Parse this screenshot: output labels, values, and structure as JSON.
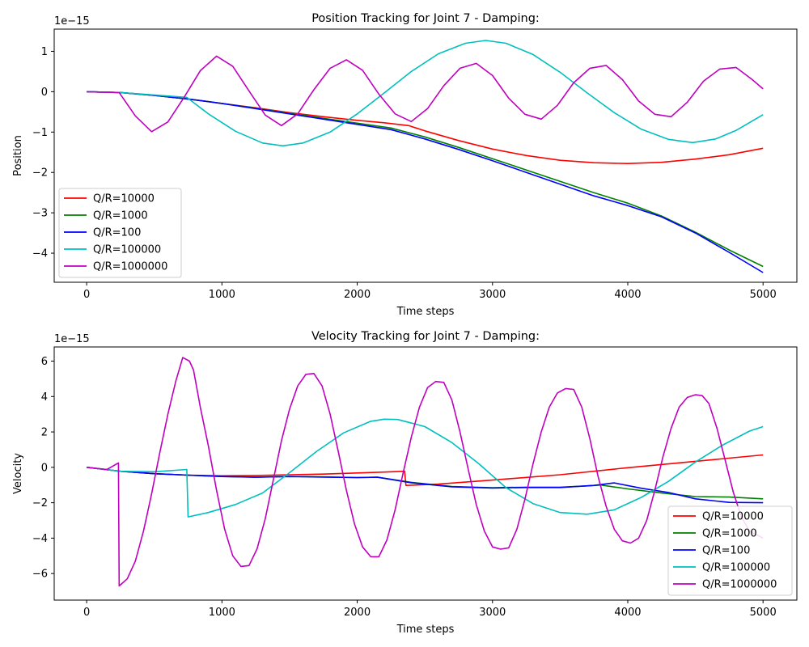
{
  "chart_data": [
    {
      "type": "line",
      "title": "Position Tracking for Joint 7 - Damping:",
      "xlabel": "Time steps",
      "ylabel": "Position",
      "y_offset_text": "1e−15",
      "xlim": [
        -240,
        5250
      ],
      "ylim": [
        -4.72,
        1.55
      ],
      "xticks": [
        0,
        1000,
        2000,
        3000,
        4000,
        5000
      ],
      "yticks": [
        1,
        0,
        -1,
        -2,
        -3,
        -4
      ],
      "grid": false,
      "legend_position": "lower-left",
      "series": [
        {
          "name": "Q/R=10000",
          "color": "#ff0000",
          "x": [
            0,
            250,
            500,
            750,
            1000,
            1250,
            1500,
            1750,
            2000,
            2200,
            2380,
            2500,
            2750,
            3000,
            3250,
            3500,
            3750,
            4000,
            4250,
            4500,
            4750,
            5000
          ],
          "y": [
            0,
            -0.02,
            -0.09,
            -0.18,
            -0.29,
            -0.4,
            -0.52,
            -0.62,
            -0.71,
            -0.77,
            -0.84,
            -0.97,
            -1.21,
            -1.42,
            -1.58,
            -1.7,
            -1.76,
            -1.78,
            -1.75,
            -1.67,
            -1.56,
            -1.4
          ]
        },
        {
          "name": "Q/R=1000",
          "color": "#008000",
          "x": [
            0,
            250,
            500,
            750,
            1000,
            1250,
            1500,
            1750,
            2000,
            2250,
            2500,
            2750,
            3000,
            3250,
            3500,
            3750,
            4000,
            4250,
            4500,
            4750,
            5000
          ],
          "y": [
            0,
            -0.02,
            -0.09,
            -0.18,
            -0.29,
            -0.41,
            -0.54,
            -0.66,
            -0.78,
            -0.9,
            -1.12,
            -1.38,
            -1.66,
            -1.94,
            -2.22,
            -2.5,
            -2.76,
            -3.08,
            -3.48,
            -3.92,
            -4.33
          ]
        },
        {
          "name": "Q/R=100",
          "color": "#0000ff",
          "x": [
            0,
            250,
            500,
            750,
            1000,
            1250,
            1500,
            1750,
            2000,
            2250,
            2500,
            2750,
            3000,
            3250,
            3500,
            3750,
            4000,
            4250,
            4500,
            4750,
            5000
          ],
          "y": [
            0,
            -0.02,
            -0.09,
            -0.18,
            -0.29,
            -0.42,
            -0.55,
            -0.68,
            -0.81,
            -0.94,
            -1.17,
            -1.43,
            -1.71,
            -2.0,
            -2.29,
            -2.58,
            -2.82,
            -3.1,
            -3.5,
            -3.98,
            -4.48
          ]
        },
        {
          "name": "Q/R=100000",
          "color": "#00bfbf",
          "x": [
            0,
            250,
            500,
            740,
            900,
            1100,
            1300,
            1450,
            1600,
            1800,
            2000,
            2200,
            2400,
            2600,
            2800,
            2950,
            3100,
            3300,
            3500,
            3700,
            3900,
            4100,
            4300,
            4480,
            4650,
            4800,
            5000
          ],
          "y": [
            0,
            -0.02,
            -0.08,
            -0.14,
            -0.55,
            -0.98,
            -1.27,
            -1.34,
            -1.27,
            -1.0,
            -0.55,
            -0.03,
            0.5,
            0.94,
            1.2,
            1.27,
            1.2,
            0.92,
            0.48,
            -0.03,
            -0.52,
            -0.93,
            -1.18,
            -1.26,
            -1.17,
            -0.96,
            -0.57
          ]
        },
        {
          "name": "Q/R=1000000",
          "color": "#bf00bf",
          "x": [
            0,
            240,
            360,
            480,
            600,
            720,
            840,
            960,
            1080,
            1200,
            1320,
            1440,
            1560,
            1680,
            1800,
            1920,
            2040,
            2160,
            2280,
            2400,
            2520,
            2640,
            2760,
            2880,
            3000,
            3120,
            3240,
            3360,
            3480,
            3600,
            3720,
            3840,
            3960,
            4080,
            4200,
            4320,
            4440,
            4560,
            4680,
            4800,
            4920,
            5000
          ],
          "y": [
            0,
            -0.02,
            -0.6,
            -0.99,
            -0.75,
            -0.14,
            0.52,
            0.88,
            0.63,
            0.02,
            -0.58,
            -0.84,
            -0.55,
            0.05,
            0.58,
            0.79,
            0.53,
            -0.06,
            -0.55,
            -0.74,
            -0.42,
            0.15,
            0.58,
            0.7,
            0.4,
            -0.16,
            -0.56,
            -0.68,
            -0.34,
            0.22,
            0.58,
            0.65,
            0.3,
            -0.23,
            -0.56,
            -0.62,
            -0.26,
            0.26,
            0.56,
            0.6,
            0.3,
            0.07
          ]
        }
      ]
    },
    {
      "type": "line",
      "title": "Velocity Tracking for Joint 7 - Damping:",
      "xlabel": "Time steps",
      "ylabel": "Velocity",
      "y_offset_text": "1e−15",
      "xlim": [
        -240,
        5250
      ],
      "ylim": [
        -7.5,
        6.8
      ],
      "xticks": [
        0,
        1000,
        2000,
        3000,
        4000,
        5000
      ],
      "yticks": [
        6,
        4,
        2,
        0,
        -2,
        -4,
        -6
      ],
      "grid": false,
      "legend_position": "lower-right",
      "series": [
        {
          "name": "Q/R=10000",
          "color": "#ff0000",
          "x": [
            0,
            250,
            500,
            750,
            1000,
            1250,
            1500,
            1750,
            2000,
            2200,
            2350,
            2360,
            2600,
            3000,
            3500,
            4000,
            4500,
            5000
          ],
          "y": [
            0,
            -0.22,
            -0.36,
            -0.44,
            -0.48,
            -0.46,
            -0.42,
            -0.38,
            -0.32,
            -0.27,
            -0.22,
            -1.02,
            -0.95,
            -0.72,
            -0.42,
            -0.02,
            0.34,
            0.7
          ]
        },
        {
          "name": "Q/R=1000",
          "color": "#008000",
          "x": [
            0,
            250,
            500,
            750,
            1000,
            1250,
            1500,
            1750,
            2000,
            2150,
            2400,
            2700,
            3000,
            3250,
            3500,
            3700,
            3800,
            4000,
            4250,
            4500,
            4750,
            5000
          ],
          "y": [
            0,
            -0.22,
            -0.36,
            -0.44,
            -0.52,
            -0.55,
            -0.52,
            -0.54,
            -0.58,
            -0.56,
            -0.85,
            -1.08,
            -1.15,
            -1.12,
            -1.12,
            -1.05,
            -1.0,
            -1.22,
            -1.45,
            -1.65,
            -1.68,
            -1.78
          ]
        },
        {
          "name": "Q/R=100",
          "color": "#0000ff",
          "x": [
            0,
            250,
            500,
            750,
            1000,
            1250,
            1500,
            1750,
            2000,
            2150,
            2400,
            2700,
            3000,
            3250,
            3500,
            3750,
            3900,
            4100,
            4300,
            4500,
            4750,
            5000
          ],
          "y": [
            0,
            -0.22,
            -0.36,
            -0.44,
            -0.52,
            -0.56,
            -0.52,
            -0.55,
            -0.58,
            -0.56,
            -0.87,
            -1.1,
            -1.17,
            -1.14,
            -1.14,
            -1.02,
            -0.88,
            -1.18,
            -1.42,
            -1.78,
            -1.98,
            -2.0
          ]
        },
        {
          "name": "Q/R=100000",
          "color": "#00bfbf",
          "x": [
            0,
            250,
            500,
            740,
            750,
            900,
            1100,
            1300,
            1500,
            1700,
            1900,
            2100,
            2200,
            2300,
            2500,
            2700,
            2900,
            3100,
            3300,
            3500,
            3700,
            3900,
            4100,
            4300,
            4500,
            4700,
            4900,
            5000
          ],
          "y": [
            0,
            -0.22,
            -0.25,
            -0.12,
            -2.8,
            -2.55,
            -2.1,
            -1.45,
            -0.3,
            0.9,
            1.95,
            2.6,
            2.72,
            2.7,
            2.3,
            1.4,
            0.2,
            -1.15,
            -2.05,
            -2.55,
            -2.65,
            -2.4,
            -1.7,
            -0.8,
            0.3,
            1.25,
            2.05,
            2.3
          ]
        },
        {
          "name": "Q/R=1000000",
          "color": "#bf00bf",
          "x": [
            0,
            150,
            200,
            235,
            240,
            300,
            360,
            420,
            480,
            540,
            600,
            660,
            710,
            760,
            790,
            840,
            900,
            960,
            1020,
            1080,
            1140,
            1200,
            1260,
            1320,
            1380,
            1440,
            1500,
            1560,
            1620,
            1680,
            1740,
            1800,
            1860,
            1920,
            1980,
            2040,
            2100,
            2160,
            2220,
            2280,
            2340,
            2400,
            2460,
            2520,
            2580,
            2640,
            2700,
            2760,
            2820,
            2880,
            2940,
            3000,
            3060,
            3120,
            3180,
            3240,
            3300,
            3360,
            3420,
            3480,
            3540,
            3600,
            3660,
            3720,
            3780,
            3840,
            3900,
            3960,
            4020,
            4080,
            4140,
            4200,
            4260,
            4320,
            4380,
            4440,
            4500,
            4550,
            4600,
            4660,
            4720,
            4780,
            4840,
            4900,
            5000
          ],
          "y": [
            0,
            -0.12,
            0.1,
            0.25,
            -6.7,
            -6.3,
            -5.3,
            -3.6,
            -1.5,
            0.8,
            3.0,
            4.9,
            6.2,
            6.0,
            5.5,
            3.4,
            1.2,
            -1.3,
            -3.5,
            -5.0,
            -5.6,
            -5.55,
            -4.6,
            -2.9,
            -0.7,
            1.5,
            3.3,
            4.6,
            5.25,
            5.3,
            4.6,
            3.0,
            0.9,
            -1.3,
            -3.2,
            -4.5,
            -5.05,
            -5.05,
            -4.1,
            -2.4,
            -0.3,
            1.7,
            3.4,
            4.5,
            4.85,
            4.8,
            3.8,
            2.0,
            -0.1,
            -2.1,
            -3.6,
            -4.5,
            -4.62,
            -4.55,
            -3.5,
            -1.8,
            0.2,
            2.0,
            3.4,
            4.2,
            4.45,
            4.4,
            3.4,
            1.6,
            -0.5,
            -2.2,
            -3.5,
            -4.15,
            -4.28,
            -4.0,
            -3.0,
            -1.3,
            0.6,
            2.2,
            3.4,
            3.95,
            4.1,
            4.05,
            3.6,
            2.2,
            0.4,
            -1.4,
            -2.8,
            -3.6,
            -4.0
          ]
        }
      ]
    }
  ]
}
